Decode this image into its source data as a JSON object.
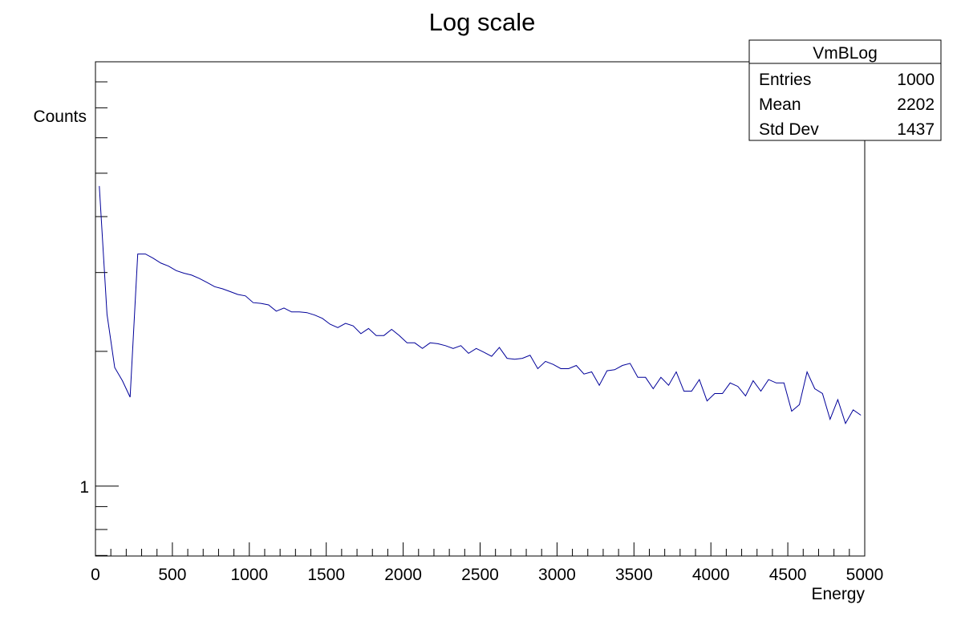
{
  "chart_data": {
    "type": "line",
    "title": "Log scale",
    "xlabel": "Energy",
    "ylabel": "Counts",
    "log_y": true,
    "color": "#000099",
    "xlim": [
      0,
      5000
    ],
    "xticks": [
      0,
      500,
      1000,
      1500,
      2000,
      2500,
      3000,
      3500,
      4000,
      4500,
      5000
    ],
    "xminorticks": [
      100,
      200,
      300,
      400,
      600,
      700,
      800,
      900,
      1100,
      1200,
      1300,
      1400,
      1600,
      1700,
      1800,
      1900,
      2100,
      2200,
      2300,
      2400,
      2600,
      2700,
      2800,
      2900,
      3100,
      3200,
      3300,
      3400,
      3600,
      3700,
      3800,
      3900,
      4100,
      4200,
      4300,
      4400,
      4600,
      4700,
      4800,
      4900
    ],
    "ylim": [
      0.698,
      8.87
    ],
    "yticks": [
      1
    ],
    "yminorticks": [
      0.7,
      0.8,
      0.9,
      2,
      3,
      4,
      5,
      6,
      7,
      8
    ],
    "x": [
      25,
      75,
      125,
      175,
      225,
      275,
      325,
      375,
      425,
      475,
      525,
      575,
      625,
      675,
      725,
      775,
      825,
      875,
      925,
      975,
      1025,
      1075,
      1125,
      1175,
      1225,
      1275,
      1325,
      1375,
      1425,
      1475,
      1525,
      1575,
      1625,
      1675,
      1725,
      1775,
      1825,
      1875,
      1925,
      1975,
      2025,
      2075,
      2125,
      2175,
      2225,
      2275,
      2325,
      2375,
      2425,
      2475,
      2525,
      2575,
      2625,
      2675,
      2725,
      2775,
      2825,
      2875,
      2925,
      2975,
      3025,
      3075,
      3125,
      3175,
      3225,
      3275,
      3325,
      3375,
      3425,
      3475,
      3525,
      3575,
      3625,
      3675,
      3725,
      3775,
      3825,
      3875,
      3925,
      3975,
      4025,
      4075,
      4125,
      4175,
      4225,
      4275,
      4325,
      4375,
      4425,
      4475,
      4525,
      4575,
      4625,
      4675,
      4725,
      4775,
      4825,
      4875,
      4925,
      4975
    ],
    "values": [
      4.68,
      2.42,
      1.84,
      1.72,
      1.58,
      3.3,
      3.3,
      3.23,
      3.15,
      3.1,
      3.03,
      2.99,
      2.96,
      2.91,
      2.85,
      2.79,
      2.76,
      2.72,
      2.68,
      2.66,
      2.57,
      2.56,
      2.54,
      2.46,
      2.5,
      2.45,
      2.45,
      2.44,
      2.41,
      2.37,
      2.3,
      2.26,
      2.31,
      2.28,
      2.19,
      2.25,
      2.17,
      2.17,
      2.24,
      2.17,
      2.09,
      2.09,
      2.03,
      2.09,
      2.08,
      2.06,
      2.03,
      2.06,
      1.98,
      2.03,
      1.99,
      1.95,
      2.04,
      1.93,
      1.92,
      1.93,
      1.96,
      1.83,
      1.9,
      1.87,
      1.83,
      1.83,
      1.86,
      1.78,
      1.8,
      1.68,
      1.81,
      1.82,
      1.86,
      1.88,
      1.75,
      1.75,
      1.65,
      1.75,
      1.68,
      1.8,
      1.63,
      1.63,
      1.73,
      1.55,
      1.61,
      1.61,
      1.7,
      1.67,
      1.59,
      1.72,
      1.63,
      1.73,
      1.7,
      1.7,
      1.47,
      1.52,
      1.8,
      1.65,
      1.61,
      1.41,
      1.56,
      1.38,
      1.48,
      1.44
    ],
    "stats": {
      "title": "VmBLog",
      "rows": [
        [
          "Entries",
          1000
        ],
        [
          "Mean",
          2202
        ],
        [
          "Std Dev",
          1437
        ]
      ]
    }
  }
}
